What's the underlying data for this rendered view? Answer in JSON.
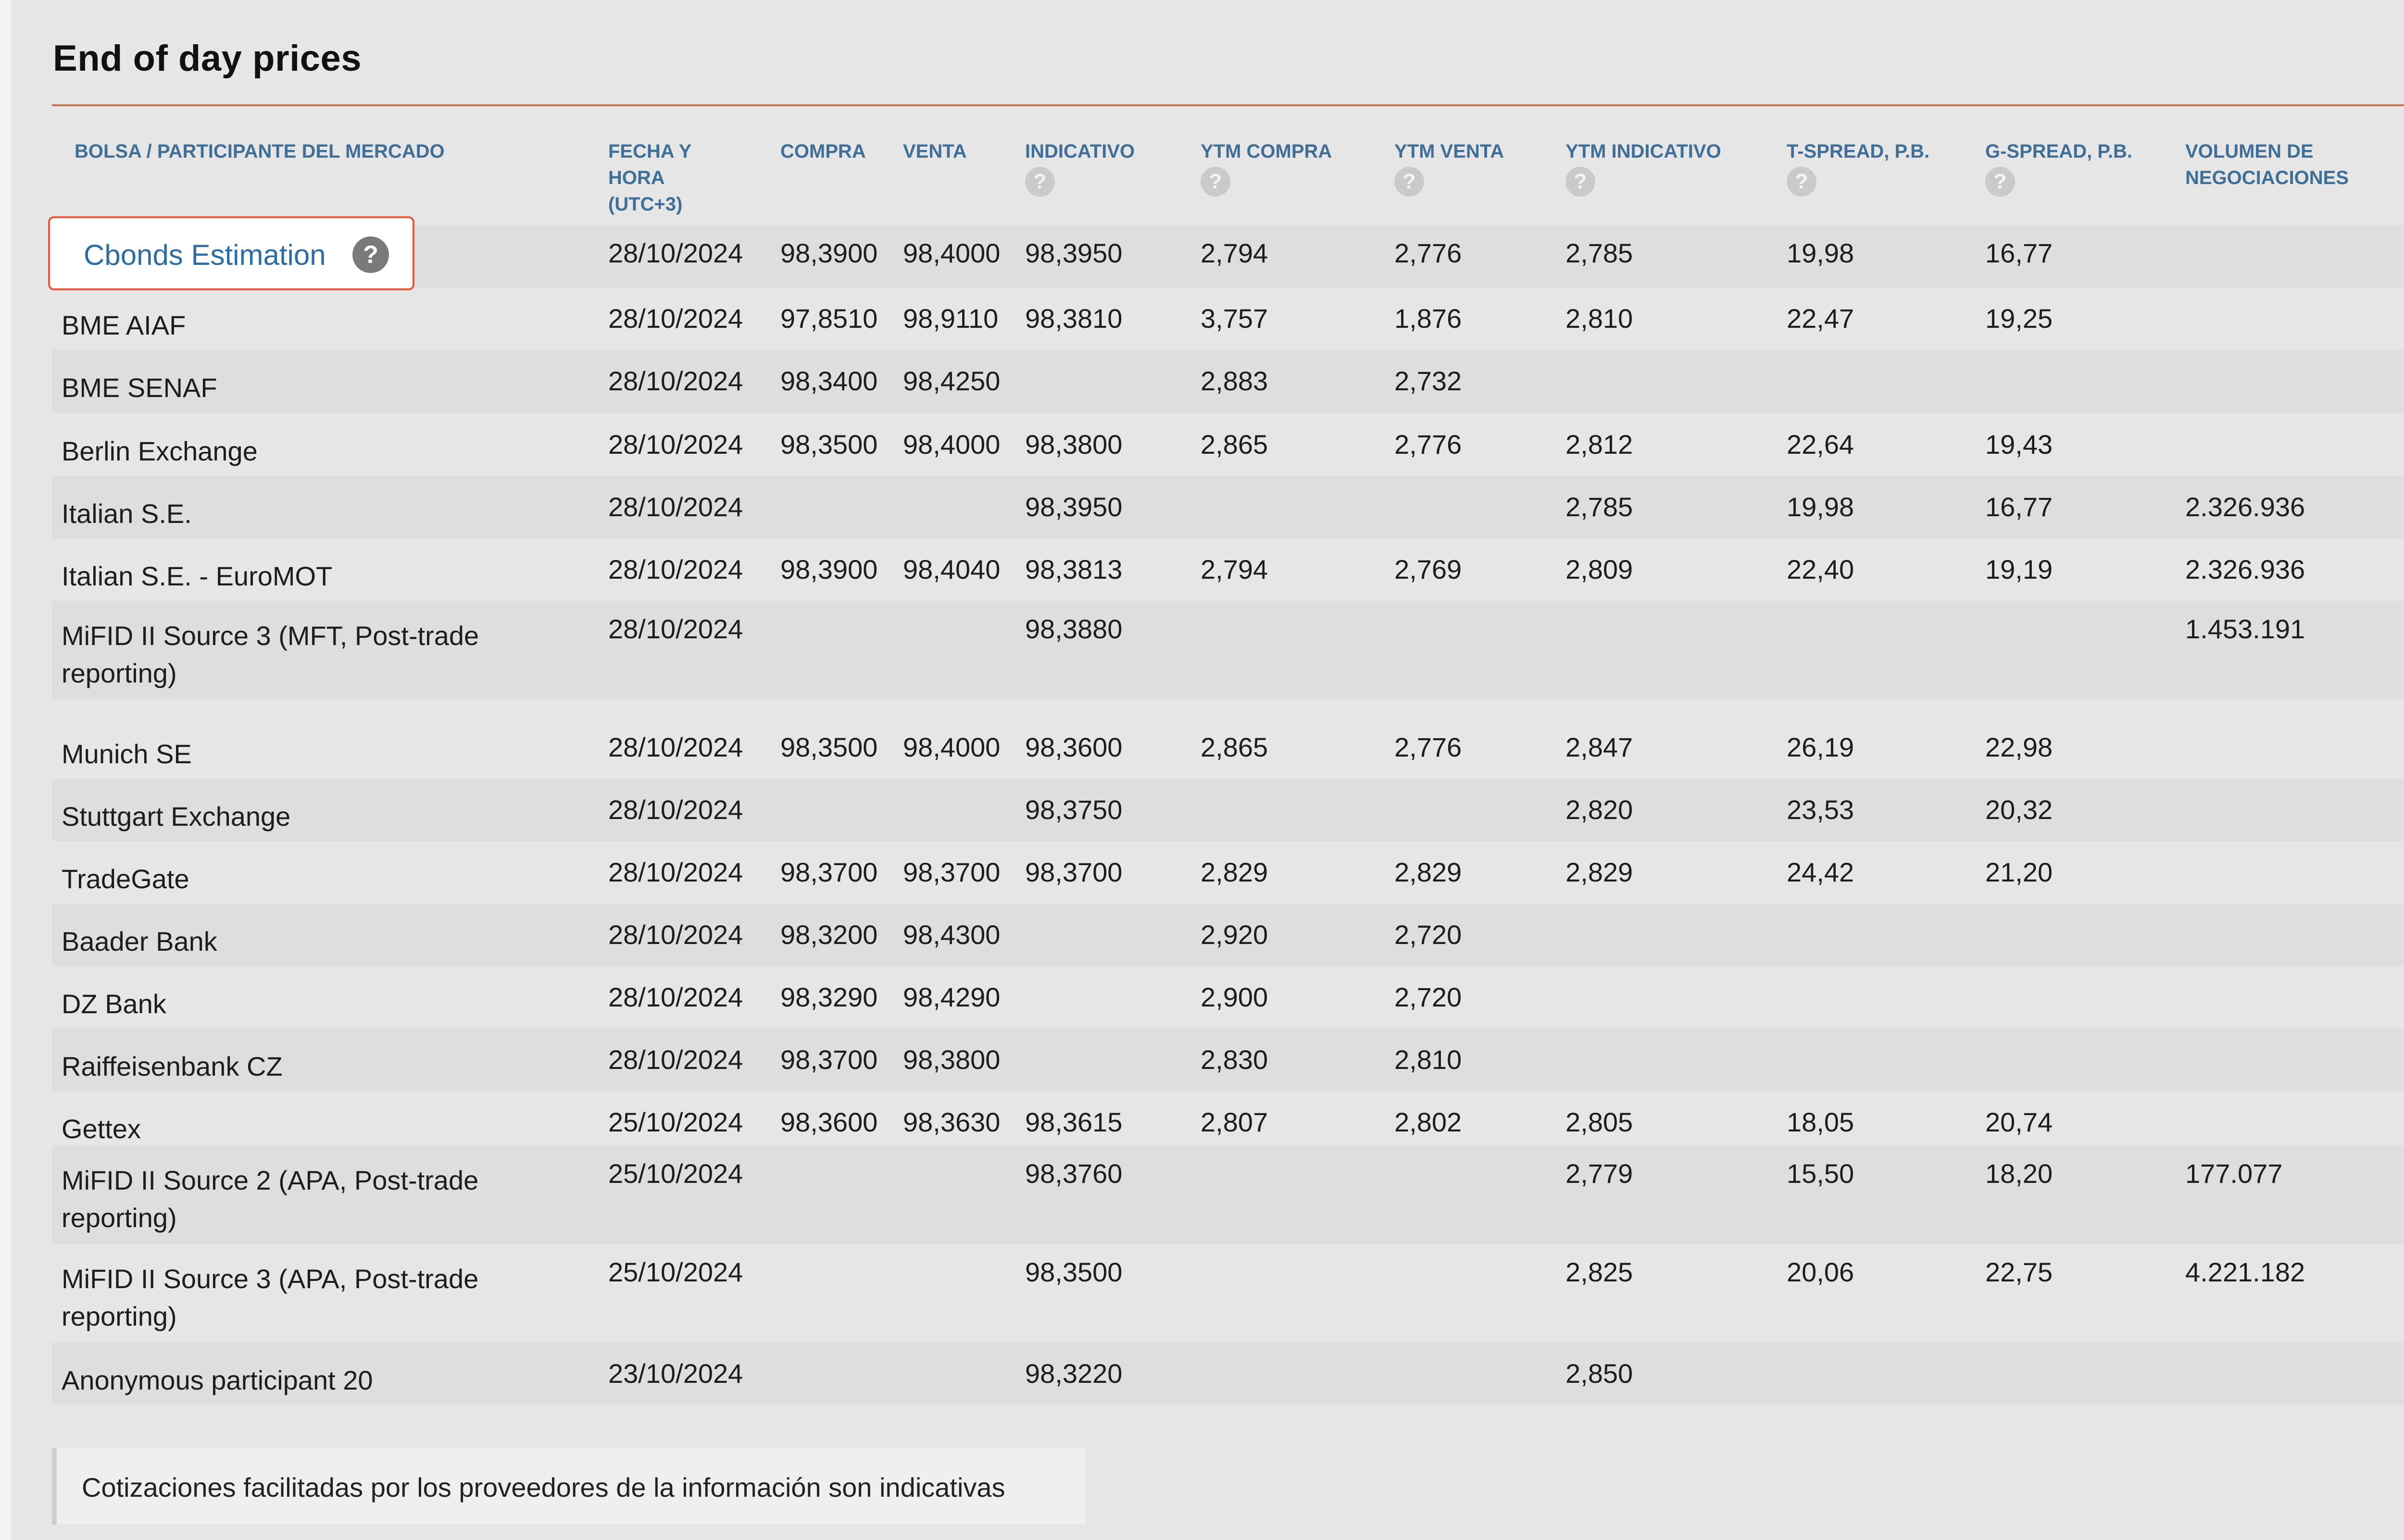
{
  "title": "End of day prices",
  "columns": [
    {
      "label": "BOLSA / PARTICIPANTE DEL MERCADO",
      "help": false
    },
    {
      "label": "FECHA Y\nHORA\n(UTC+3)",
      "help": false
    },
    {
      "label": "COMPRA",
      "help": false
    },
    {
      "label": "VENTA",
      "help": false
    },
    {
      "label": "INDICATIVO",
      "help": true
    },
    {
      "label": "YTM COMPRA",
      "help": true
    },
    {
      "label": "YTM VENTA",
      "help": true
    },
    {
      "label": "YTM INDICATIVO",
      "help": true
    },
    {
      "label": "T-SPREAD, P.B.",
      "help": true
    },
    {
      "label": "G-SPREAD, P.B.",
      "help": true
    },
    {
      "label": "VOLUMEN DE\nNEGOCIACIONES",
      "help": false
    }
  ],
  "help_glyph": "?",
  "help_icon": "question-circle-icon",
  "rows": [
    {
      "name": "Cbonds Estimation",
      "date": "28/10/2024",
      "compra": "98,3900",
      "venta": "98,4000",
      "indicativo": "98,3950",
      "ytm_compra": "2,794",
      "ytm_venta": "2,776",
      "ytm_indicativo": "2,785",
      "t_spread": "19,98",
      "g_spread": "16,77",
      "volumen": "",
      "highlight": true
    },
    {
      "name": "BME AIAF",
      "date": "28/10/2024",
      "compra": "97,8510",
      "venta": "98,9110",
      "indicativo": "98,3810",
      "ytm_compra": "3,757",
      "ytm_venta": "1,876",
      "ytm_indicativo": "2,810",
      "t_spread": "22,47",
      "g_spread": "19,25",
      "volumen": ""
    },
    {
      "name": "BME SENAF",
      "date": "28/10/2024",
      "compra": "98,3400",
      "venta": "98,4250",
      "indicativo": "",
      "ytm_compra": "2,883",
      "ytm_venta": "2,732",
      "ytm_indicativo": "",
      "t_spread": "",
      "g_spread": "",
      "volumen": ""
    },
    {
      "name": "Berlin Exchange",
      "date": "28/10/2024",
      "compra": "98,3500",
      "venta": "98,4000",
      "indicativo": "98,3800",
      "ytm_compra": "2,865",
      "ytm_venta": "2,776",
      "ytm_indicativo": "2,812",
      "t_spread": "22,64",
      "g_spread": "19,43",
      "volumen": ""
    },
    {
      "name": "Italian S.E.",
      "date": "28/10/2024",
      "compra": "",
      "venta": "",
      "indicativo": "98,3950",
      "ytm_compra": "",
      "ytm_venta": "",
      "ytm_indicativo": "2,785",
      "t_spread": "19,98",
      "g_spread": "16,77",
      "volumen": "2.326.936"
    },
    {
      "name": "Italian S.E. - EuroMOT",
      "date": "28/10/2024",
      "compra": "98,3900",
      "venta": "98,4040",
      "indicativo": "98,3813",
      "ytm_compra": "2,794",
      "ytm_venta": "2,769",
      "ytm_indicativo": "2,809",
      "t_spread": "22,40",
      "g_spread": "19,19",
      "volumen": "2.326.936"
    },
    {
      "name": "MiFID II Source 3 (MFT, Post-trade reporting)",
      "date": "28/10/2024",
      "compra": "",
      "venta": "",
      "indicativo": "98,3880",
      "ytm_compra": "",
      "ytm_venta": "",
      "ytm_indicativo": "",
      "t_spread": "",
      "g_spread": "",
      "volumen": "1.453.191"
    },
    {
      "name": "Munich SE",
      "date": "28/10/2024",
      "compra": "98,3500",
      "venta": "98,4000",
      "indicativo": "98,3600",
      "ytm_compra": "2,865",
      "ytm_venta": "2,776",
      "ytm_indicativo": "2,847",
      "t_spread": "26,19",
      "g_spread": "22,98",
      "volumen": ""
    },
    {
      "name": "Stuttgart Exchange",
      "date": "28/10/2024",
      "compra": "",
      "venta": "",
      "indicativo": "98,3750",
      "ytm_compra": "",
      "ytm_venta": "",
      "ytm_indicativo": "2,820",
      "t_spread": "23,53",
      "g_spread": "20,32",
      "volumen": ""
    },
    {
      "name": "TradeGate",
      "date": "28/10/2024",
      "compra": "98,3700",
      "venta": "98,3700",
      "indicativo": "98,3700",
      "ytm_compra": "2,829",
      "ytm_venta": "2,829",
      "ytm_indicativo": "2,829",
      "t_spread": "24,42",
      "g_spread": "21,20",
      "volumen": ""
    },
    {
      "name": "Baader Bank",
      "date": "28/10/2024",
      "compra": "98,3200",
      "venta": "98,4300",
      "indicativo": "",
      "ytm_compra": "2,920",
      "ytm_venta": "2,720",
      "ytm_indicativo": "",
      "t_spread": "",
      "g_spread": "",
      "volumen": ""
    },
    {
      "name": "DZ Bank",
      "date": "28/10/2024",
      "compra": "98,3290",
      "venta": "98,4290",
      "indicativo": "",
      "ytm_compra": "2,900",
      "ytm_venta": "2,720",
      "ytm_indicativo": "",
      "t_spread": "",
      "g_spread": "",
      "volumen": ""
    },
    {
      "name": "Raiffeisenbank CZ",
      "date": "28/10/2024",
      "compra": "98,3700",
      "venta": "98,3800",
      "indicativo": "",
      "ytm_compra": "2,830",
      "ytm_venta": "2,810",
      "ytm_indicativo": "",
      "t_spread": "",
      "g_spread": "",
      "volumen": ""
    },
    {
      "name": "Gettex",
      "date": "25/10/2024",
      "compra": "98,3600",
      "venta": "98,3630",
      "indicativo": "98,3615",
      "ytm_compra": "2,807",
      "ytm_venta": "2,802",
      "ytm_indicativo": "2,805",
      "t_spread": "18,05",
      "g_spread": "20,74",
      "volumen": ""
    },
    {
      "name": "MiFID II Source 2 (APA, Post-trade reporting)",
      "date": "25/10/2024",
      "compra": "",
      "venta": "",
      "indicativo": "98,3760",
      "ytm_compra": "",
      "ytm_venta": "",
      "ytm_indicativo": "2,779",
      "t_spread": "15,50",
      "g_spread": "18,20",
      "volumen": "177.077"
    },
    {
      "name": "MiFID II Source 3 (APA, Post-trade reporting)",
      "date": "25/10/2024",
      "compra": "",
      "venta": "",
      "indicativo": "98,3500",
      "ytm_compra": "",
      "ytm_venta": "",
      "ytm_indicativo": "2,825",
      "t_spread": "20,06",
      "g_spread": "22,75",
      "volumen": "4.221.182"
    },
    {
      "name": "Anonymous participant 20",
      "date": "23/10/2024",
      "compra": "",
      "venta": "",
      "indicativo": "98,3220",
      "ytm_compra": "",
      "ytm_venta": "",
      "ytm_indicativo": "2,850",
      "t_spread": "",
      "g_spread": "",
      "volumen": ""
    }
  ],
  "footer_note": "Cotizaciones facilitadas por los proveedores de la información son indicativas"
}
